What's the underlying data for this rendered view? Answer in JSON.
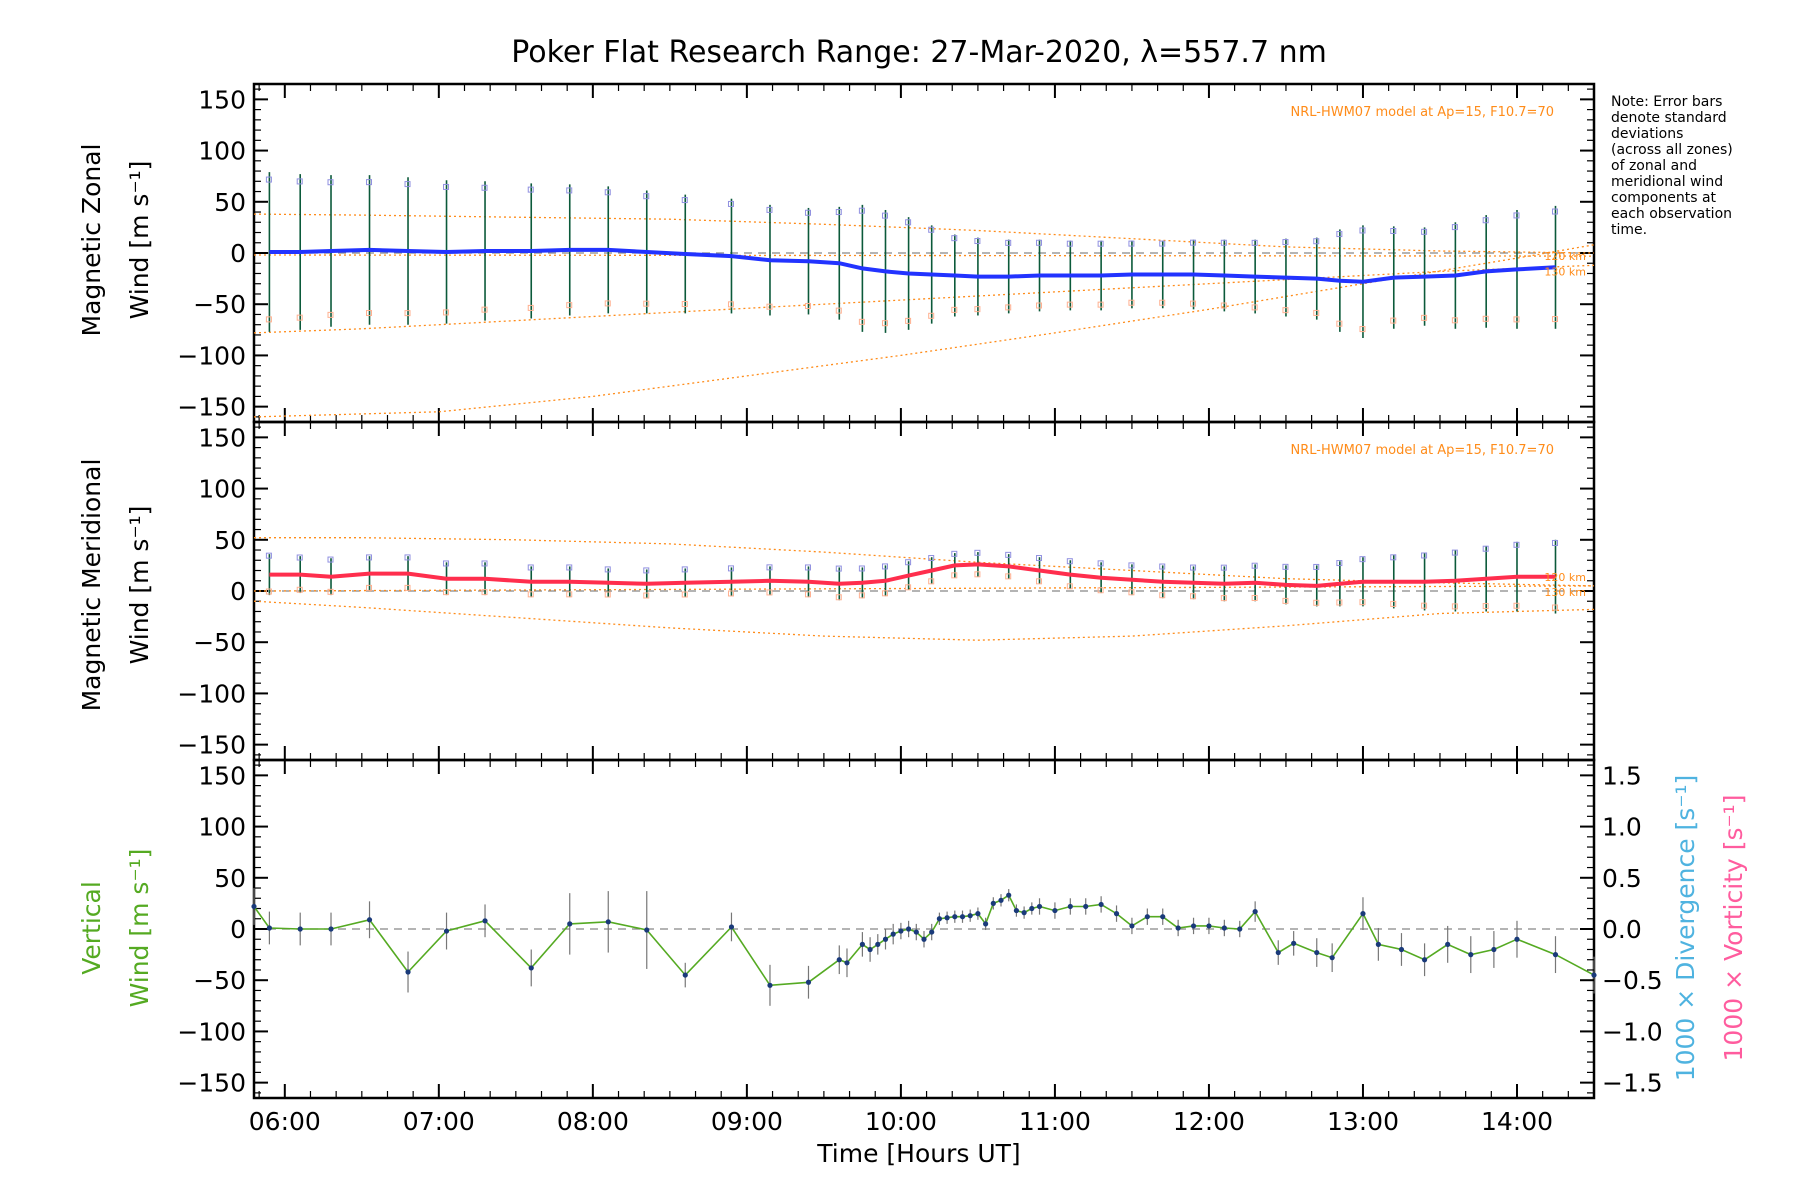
{
  "figure": {
    "title": "Poker Flat Research Range: 27-Mar-2020, λ=557.7 nm",
    "note": [
      "Note: Error bars",
      "denote standard",
      "deviations",
      "(across all zones)",
      "of zonal and",
      "meridional wind",
      "components at",
      "each observation",
      "time."
    ],
    "xlabel": "Time [Hours UT]",
    "xticks": [
      "06:00",
      "07:00",
      "08:00",
      "09:00",
      "10:00",
      "11:00",
      "12:00",
      "13:00",
      "14:00"
    ]
  },
  "colors": {
    "zonal": "#2233ff",
    "meridional": "#ff2e4d",
    "vertical": "#55aa22",
    "divergence": "#4fb3e0",
    "vorticity": "#ff5c9e",
    "model": "#ff8c1a",
    "scatter": "#9090e0",
    "errorbar": "#0b5a3a"
  },
  "chart_data": [
    {
      "type": "line",
      "panel": "zonal",
      "ylabel": [
        "Magnetic Zonal",
        "Wind [m s⁻¹]"
      ],
      "ylim": [
        -165,
        165
      ],
      "yticks": [
        "150",
        "100",
        "50",
        "0",
        "−50",
        "−100",
        "−150"
      ],
      "model_label": "NRL-HWM07 model at Ap=15, F10.7=70",
      "alt_labels": [
        "120 km",
        "130 km"
      ],
      "x_hours": [
        5.9,
        6.1,
        6.3,
        6.55,
        6.8,
        7.05,
        7.3,
        7.6,
        7.85,
        8.1,
        8.35,
        8.6,
        8.9,
        9.15,
        9.4,
        9.6,
        9.75,
        9.9,
        10.05,
        10.2,
        10.35,
        10.5,
        10.7,
        10.9,
        11.1,
        11.3,
        11.5,
        11.7,
        11.9,
        12.1,
        12.3,
        12.5,
        12.7,
        12.85,
        13.0,
        13.2,
        13.4,
        13.6,
        13.8,
        14.0,
        14.25
      ],
      "values": [
        1,
        1,
        2,
        3,
        2,
        1,
        2,
        2,
        3,
        3,
        1,
        -1,
        -3,
        -7,
        -8,
        -10,
        -15,
        -18,
        -20,
        -21,
        -22,
        -23,
        -23,
        -22,
        -22,
        -22,
        -21,
        -21,
        -21,
        -22,
        -23,
        -24,
        -25,
        -27,
        -28,
        -24,
        -23,
        -22,
        -18,
        -16,
        -14
      ],
      "err": [
        78,
        76,
        74,
        73,
        72,
        70,
        68,
        66,
        64,
        62,
        60,
        58,
        56,
        54,
        52,
        55,
        62,
        60,
        55,
        48,
        40,
        38,
        36,
        35,
        34,
        34,
        33,
        33,
        34,
        35,
        36,
        38,
        40,
        50,
        55,
        50,
        48,
        52,
        55,
        58,
        60
      ],
      "model_curves": [
        {
          "x": [
            5.8,
            6.5,
            7.5,
            8.5,
            9.5,
            10.5,
            11.5,
            12.5,
            13.5,
            14.5
          ],
          "y": [
            38,
            37,
            35,
            33,
            28,
            22,
            14,
            6,
            2,
            0
          ]
        },
        {
          "x": [
            5.8,
            6.5,
            7.5,
            8.5,
            9.5,
            10.5,
            11.5,
            12.5,
            13.5,
            14.5
          ],
          "y": [
            -78,
            -74,
            -66,
            -58,
            -50,
            -42,
            -34,
            -26,
            -18,
            -12
          ]
        },
        {
          "x": [
            5.8,
            7.0,
            8.0,
            9.0,
            10.0,
            11.0,
            12.0,
            13.0,
            14.0,
            14.5
          ],
          "y": [
            -160,
            -155,
            -140,
            -120,
            -100,
            -78,
            -55,
            -30,
            -5,
            8
          ]
        },
        {
          "x": [
            5.8,
            14.5
          ],
          "y": [
            -2,
            -3
          ]
        }
      ]
    },
    {
      "type": "line",
      "panel": "meridional",
      "ylabel": [
        "Magnetic Meridional",
        "Wind [m s⁻¹]"
      ],
      "ylim": [
        -165,
        165
      ],
      "yticks": [
        "150",
        "100",
        "50",
        "0",
        "−50",
        "−100",
        "−150"
      ],
      "model_label": "NRL-HWM07 model at Ap=15, F10.7=70",
      "alt_labels": [
        "120 km",
        "130 km"
      ],
      "x_hours": [
        5.9,
        6.1,
        6.3,
        6.55,
        6.8,
        7.05,
        7.3,
        7.6,
        7.85,
        8.1,
        8.35,
        8.6,
        8.9,
        9.15,
        9.4,
        9.6,
        9.75,
        9.9,
        10.05,
        10.2,
        10.35,
        10.5,
        10.7,
        10.9,
        11.1,
        11.3,
        11.5,
        11.7,
        11.9,
        12.1,
        12.3,
        12.5,
        12.7,
        12.85,
        13.0,
        13.2,
        13.4,
        13.6,
        13.8,
        14.0,
        14.25
      ],
      "values": [
        16,
        16,
        14,
        17,
        17,
        12,
        12,
        9,
        9,
        8,
        7,
        8,
        9,
        10,
        9,
        7,
        8,
        10,
        15,
        20,
        25,
        26,
        24,
        20,
        16,
        13,
        11,
        9,
        8,
        7,
        8,
        6,
        5,
        7,
        9,
        9,
        9,
        10,
        12,
        14,
        14
      ],
      "err": [
        20,
        18,
        18,
        17,
        17,
        16,
        16,
        15,
        15,
        14,
        14,
        14,
        14,
        14,
        15,
        16,
        15,
        15,
        14,
        13,
        12,
        12,
        12,
        13,
        14,
        15,
        15,
        16,
        16,
        17,
        18,
        19,
        20,
        22,
        24,
        26,
        28,
        30,
        32,
        34,
        36
      ],
      "model_curves": [
        {
          "x": [
            5.8,
            6.5,
            7.5,
            8.5,
            9.5,
            10.5,
            11.5,
            12.5,
            13.5,
            14.5
          ],
          "y": [
            52,
            52,
            50,
            46,
            38,
            28,
            20,
            12,
            8,
            5
          ]
        },
        {
          "x": [
            5.8,
            6.5,
            7.5,
            8.5,
            9.5,
            10.5,
            11.5,
            12.5,
            13.5,
            14.5
          ],
          "y": [
            -10,
            -16,
            -26,
            -36,
            -44,
            -48,
            -44,
            -34,
            -22,
            -18
          ]
        },
        {
          "x": [
            5.8,
            14.5
          ],
          "y": [
            0,
            5
          ]
        }
      ]
    },
    {
      "type": "line",
      "panel": "vertical",
      "ylabel": [
        "Vertical",
        "Wind [m s⁻¹]"
      ],
      "ylim": [
        -165,
        165
      ],
      "yticks": [
        "150",
        "100",
        "50",
        "0",
        "−50",
        "−100",
        "−150"
      ],
      "y2label": [
        "1000 × Divergence [s⁻¹]",
        "1000 × Vorticity [s⁻¹]"
      ],
      "y2lim": [
        -1.65,
        1.65
      ],
      "y2ticks": [
        "1.5",
        "1.0",
        "0.5",
        "0.0",
        "−0.5",
        "−1.0",
        "−1.5"
      ],
      "x_hours": [
        5.8,
        5.9,
        6.1,
        6.3,
        6.55,
        6.8,
        7.05,
        7.3,
        7.6,
        7.85,
        8.1,
        8.35,
        8.6,
        8.9,
        9.15,
        9.4,
        9.6,
        9.65,
        9.75,
        9.8,
        9.85,
        9.9,
        9.95,
        10.0,
        10.05,
        10.1,
        10.15,
        10.2,
        10.25,
        10.3,
        10.35,
        10.4,
        10.45,
        10.5,
        10.55,
        10.6,
        10.65,
        10.7,
        10.75,
        10.8,
        10.85,
        10.9,
        11.0,
        11.1,
        11.2,
        11.3,
        11.4,
        11.5,
        11.6,
        11.7,
        11.8,
        11.9,
        12.0,
        12.1,
        12.2,
        12.3,
        12.45,
        12.55,
        12.7,
        12.8,
        13.0,
        13.1,
        13.25,
        13.4,
        13.55,
        13.7,
        13.85,
        14.0,
        14.25,
        14.5
      ],
      "values": [
        22,
        1,
        0,
        0,
        9,
        -42,
        -2,
        8,
        -38,
        5,
        7,
        -1,
        -45,
        2,
        -55,
        -52,
        -30,
        -33,
        -15,
        -20,
        -15,
        -10,
        -5,
        -2,
        0,
        -3,
        -10,
        -3,
        10,
        11,
        12,
        12,
        13,
        15,
        5,
        25,
        28,
        33,
        18,
        16,
        20,
        22,
        18,
        22,
        22,
        24,
        15,
        3,
        12,
        12,
        1,
        3,
        3,
        1,
        0,
        17,
        -23,
        -14,
        -23,
        -28,
        15,
        -15,
        -20,
        -30,
        -15,
        -25,
        -20,
        -10,
        -25,
        -45
      ],
      "err": [
        18,
        16,
        16,
        16,
        18,
        20,
        18,
        16,
        18,
        30,
        30,
        38,
        12,
        14,
        20,
        16,
        14,
        14,
        12,
        12,
        10,
        10,
        10,
        8,
        8,
        8,
        8,
        8,
        6,
        6,
        6,
        6,
        6,
        6,
        6,
        6,
        6,
        6,
        6,
        6,
        6,
        8,
        8,
        8,
        8,
        8,
        8,
        8,
        8,
        8,
        8,
        8,
        8,
        8,
        8,
        10,
        12,
        12,
        14,
        14,
        16,
        16,
        16,
        16,
        18,
        18,
        18,
        18,
        18,
        18
      ]
    }
  ]
}
